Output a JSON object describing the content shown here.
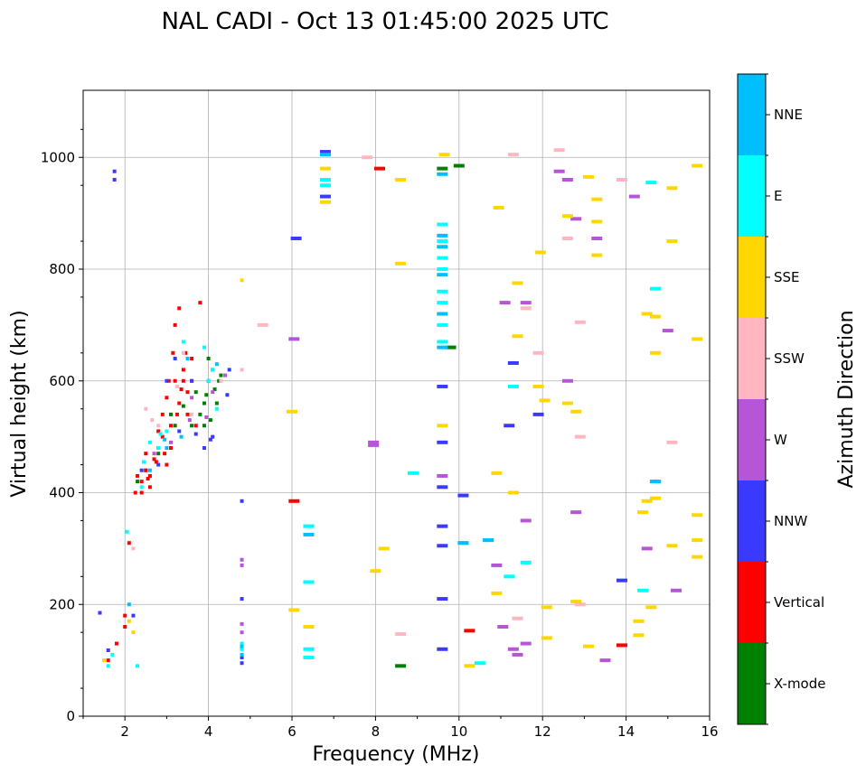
{
  "chart_data": {
    "type": "scatter",
    "title": "NAL CADI - Oct 13 01:45:00 2025 UTC",
    "xlabel": "Frequency (MHz)",
    "ylabel": "Virtual height (km)",
    "xlim": [
      1.0,
      16.0
    ],
    "ylim": [
      0,
      1120
    ],
    "xticks": [
      2,
      4,
      6,
      8,
      10,
      12,
      14,
      16
    ],
    "yticks": [
      0,
      200,
      400,
      600,
      800,
      1000
    ],
    "grid": true,
    "colorbar": {
      "label": "Azimuth Direction",
      "categories": [
        {
          "name": "X-mode",
          "color": "#008000"
        },
        {
          "name": "Vertical",
          "color": "#ff0000"
        },
        {
          "name": "NNW",
          "color": "#3a3aff"
        },
        {
          "name": "W",
          "color": "#b656d6"
        },
        {
          "name": "SSW",
          "color": "#ffb6c1"
        },
        {
          "name": "SSE",
          "color": "#ffd700"
        },
        {
          "name": "E",
          "color": "#00ffff"
        },
        {
          "name": "NNE",
          "color": "#00bfff"
        }
      ]
    },
    "series": [
      {
        "name": "X-mode",
        "points": [
          [
            2.3,
            420
          ],
          [
            2.5,
            440
          ],
          [
            2.8,
            470
          ],
          [
            3.1,
            540
          ],
          [
            3.2,
            520
          ],
          [
            3.6,
            520
          ],
          [
            3.8,
            540
          ],
          [
            3.9,
            560
          ],
          [
            4.0,
            600
          ],
          [
            4.1,
            620
          ],
          [
            4.0,
            640
          ],
          [
            4.3,
            610
          ],
          [
            3.7,
            580
          ],
          [
            4.2,
            560
          ],
          [
            8.6,
            90
          ],
          [
            9.8,
            660
          ],
          [
            10.0,
            985
          ],
          [
            9.6,
            980
          ],
          [
            3.4,
            555
          ],
          [
            3.9,
            520
          ],
          [
            4.15,
            585
          ],
          [
            3.95,
            575
          ],
          [
            4.25,
            600
          ],
          [
            4.05,
            530
          ]
        ]
      },
      {
        "name": "Vertical",
        "points": [
          [
            1.6,
            100
          ],
          [
            1.8,
            130
          ],
          [
            2.0,
            160
          ],
          [
            2.0,
            180
          ],
          [
            2.1,
            310
          ],
          [
            2.25,
            400
          ],
          [
            2.3,
            430
          ],
          [
            2.4,
            420
          ],
          [
            2.5,
            470
          ],
          [
            2.6,
            430
          ],
          [
            2.7,
            460
          ],
          [
            2.8,
            480
          ],
          [
            2.9,
            500
          ],
          [
            3.0,
            450
          ],
          [
            3.0,
            570
          ],
          [
            3.1,
            520
          ],
          [
            3.2,
            600
          ],
          [
            3.3,
            560
          ],
          [
            3.4,
            620
          ],
          [
            3.5,
            580
          ],
          [
            3.6,
            640
          ],
          [
            3.7,
            520
          ],
          [
            3.2,
            700
          ],
          [
            3.3,
            730
          ],
          [
            3.8,
            740
          ],
          [
            3.4,
            600
          ],
          [
            3.6,
            600
          ],
          [
            3.1,
            480
          ],
          [
            2.9,
            540
          ],
          [
            2.6,
            410
          ],
          [
            2.5,
            440
          ],
          [
            2.4,
            400
          ],
          [
            2.8,
            510
          ],
          [
            3.5,
            540
          ],
          [
            6.05,
            385
          ],
          [
            8.1,
            980
          ],
          [
            10.25,
            153
          ],
          [
            13.9,
            127
          ],
          [
            3.15,
            650
          ],
          [
            2.75,
            455
          ],
          [
            3.35,
            585
          ],
          [
            2.55,
            425
          ],
          [
            3.25,
            540
          ],
          [
            2.95,
            470
          ],
          [
            3.45,
            650
          ],
          [
            3.05,
            600
          ]
        ]
      },
      {
        "name": "NNW",
        "points": [
          [
            1.4,
            185
          ],
          [
            1.6,
            118
          ],
          [
            1.75,
            960
          ],
          [
            1.75,
            975
          ],
          [
            2.2,
            180
          ],
          [
            2.4,
            440
          ],
          [
            2.8,
            450
          ],
          [
            3.0,
            600
          ],
          [
            3.2,
            640
          ],
          [
            3.6,
            600
          ],
          [
            3.9,
            480
          ],
          [
            4.1,
            500
          ],
          [
            4.5,
            620
          ],
          [
            4.8,
            95
          ],
          [
            4.8,
            105
          ],
          [
            4.8,
            210
          ],
          [
            4.8,
            385
          ],
          [
            6.1,
            855
          ],
          [
            6.8,
            930
          ],
          [
            6.8,
            1010
          ],
          [
            9.6,
            120
          ],
          [
            9.6,
            210
          ],
          [
            9.6,
            305
          ],
          [
            9.6,
            340
          ],
          [
            9.6,
            410
          ],
          [
            9.6,
            490
          ],
          [
            9.6,
            590
          ],
          [
            10.1,
            395
          ],
          [
            11.2,
            520
          ],
          [
            11.3,
            632
          ],
          [
            11.9,
            540
          ],
          [
            13.9,
            243
          ],
          [
            3.7,
            505
          ],
          [
            4.05,
            495
          ],
          [
            3.3,
            510
          ],
          [
            4.45,
            575
          ]
        ]
      },
      {
        "name": "W",
        "points": [
          [
            2.7,
            470
          ],
          [
            3.1,
            490
          ],
          [
            3.6,
            570
          ],
          [
            4.1,
            580
          ],
          [
            4.4,
            610
          ],
          [
            4.8,
            150
          ],
          [
            4.8,
            165
          ],
          [
            4.8,
            270
          ],
          [
            4.8,
            280
          ],
          [
            6.05,
            675
          ],
          [
            7.95,
            485
          ],
          [
            7.95,
            490
          ],
          [
            9.6,
            430
          ],
          [
            10.9,
            270
          ],
          [
            11.05,
            160
          ],
          [
            11.1,
            740
          ],
          [
            11.3,
            120
          ],
          [
            11.4,
            110
          ],
          [
            11.6,
            130
          ],
          [
            11.6,
            350
          ],
          [
            11.6,
            740
          ],
          [
            12.4,
            975
          ],
          [
            12.6,
            960
          ],
          [
            12.6,
            600
          ],
          [
            12.8,
            365
          ],
          [
            12.8,
            890
          ],
          [
            13.3,
            855
          ],
          [
            13.5,
            100
          ],
          [
            14.5,
            300
          ],
          [
            15.0,
            690
          ],
          [
            14.2,
            930
          ],
          [
            15.2,
            225
          ],
          [
            3.95,
            535
          ],
          [
            3.55,
            530
          ]
        ]
      },
      {
        "name": "SSW",
        "points": [
          [
            2.2,
            300
          ],
          [
            2.5,
            550
          ],
          [
            2.8,
            520
          ],
          [
            3.4,
            650
          ],
          [
            3.6,
            540
          ],
          [
            4.3,
            600
          ],
          [
            4.8,
            620
          ],
          [
            5.3,
            700
          ],
          [
            7.8,
            1000
          ],
          [
            8.6,
            147
          ],
          [
            11.3,
            1005
          ],
          [
            11.4,
            175
          ],
          [
            11.6,
            730
          ],
          [
            11.9,
            650
          ],
          [
            12.4,
            1013
          ],
          [
            12.6,
            855
          ],
          [
            12.9,
            200
          ],
          [
            12.9,
            705
          ],
          [
            12.9,
            500
          ],
          [
            13.9,
            960
          ],
          [
            15.1,
            490
          ],
          [
            3.25,
            590
          ],
          [
            2.65,
            530
          ]
        ]
      },
      {
        "name": "SSE",
        "points": [
          [
            1.5,
            100
          ],
          [
            2.1,
            170
          ],
          [
            2.2,
            150
          ],
          [
            4.8,
            780
          ],
          [
            6.0,
            545
          ],
          [
            6.05,
            190
          ],
          [
            6.4,
            160
          ],
          [
            6.8,
            980
          ],
          [
            6.8,
            920
          ],
          [
            8.0,
            260
          ],
          [
            8.2,
            300
          ],
          [
            8.6,
            960
          ],
          [
            8.6,
            810
          ],
          [
            9.65,
            1005
          ],
          [
            10.25,
            90
          ],
          [
            10.9,
            220
          ],
          [
            10.9,
            435
          ],
          [
            10.95,
            910
          ],
          [
            11.3,
            400
          ],
          [
            11.4,
            680
          ],
          [
            11.4,
            775
          ],
          [
            11.9,
            590
          ],
          [
            11.95,
            830
          ],
          [
            12.05,
            565
          ],
          [
            12.1,
            195
          ],
          [
            12.1,
            140
          ],
          [
            12.6,
            560
          ],
          [
            12.6,
            895
          ],
          [
            12.8,
            205
          ],
          [
            12.8,
            545
          ],
          [
            13.1,
            125
          ],
          [
            13.1,
            965
          ],
          [
            13.3,
            925
          ],
          [
            13.3,
            885
          ],
          [
            13.3,
            825
          ],
          [
            14.3,
            170
          ],
          [
            14.3,
            145
          ],
          [
            14.4,
            365
          ],
          [
            14.5,
            385
          ],
          [
            14.5,
            720
          ],
          [
            14.6,
            195
          ],
          [
            14.7,
            650
          ],
          [
            14.7,
            390
          ],
          [
            14.7,
            715
          ],
          [
            15.1,
            305
          ],
          [
            15.1,
            945
          ],
          [
            15.1,
            850
          ],
          [
            15.7,
            985
          ],
          [
            15.7,
            675
          ],
          [
            15.7,
            360
          ],
          [
            15.7,
            315
          ],
          [
            15.7,
            285
          ],
          [
            9.6,
            520
          ]
        ]
      },
      {
        "name": "E",
        "points": [
          [
            1.6,
            90
          ],
          [
            1.7,
            110
          ],
          [
            2.05,
            330
          ],
          [
            2.3,
            90
          ],
          [
            2.4,
            410
          ],
          [
            2.6,
            490
          ],
          [
            2.8,
            480
          ],
          [
            3.0,
            510
          ],
          [
            3.4,
            670
          ],
          [
            3.9,
            660
          ],
          [
            4.0,
            600
          ],
          [
            4.1,
            620
          ],
          [
            4.2,
            550
          ],
          [
            4.8,
            130
          ],
          [
            4.8,
            120
          ],
          [
            6.4,
            340
          ],
          [
            6.4,
            240
          ],
          [
            6.4,
            105
          ],
          [
            6.4,
            120
          ],
          [
            6.8,
            960
          ],
          [
            6.8,
            950
          ],
          [
            8.9,
            435
          ],
          [
            10.1,
            310
          ],
          [
            10.5,
            95
          ],
          [
            10.7,
            315
          ],
          [
            11.3,
            590
          ],
          [
            11.6,
            275
          ],
          [
            11.2,
            250
          ],
          [
            14.7,
            765
          ],
          [
            14.7,
            420
          ],
          [
            14.6,
            955
          ],
          [
            14.4,
            225
          ],
          [
            9.6,
            700
          ],
          [
            9.6,
            740
          ],
          [
            9.6,
            800
          ],
          [
            9.6,
            850
          ],
          [
            9.6,
            760
          ],
          [
            9.6,
            880
          ],
          [
            9.6,
            670
          ],
          [
            9.6,
            820
          ],
          [
            2.45,
            455
          ],
          [
            2.85,
            505
          ]
        ]
      },
      {
        "name": "NNE",
        "points": [
          [
            2.1,
            200
          ],
          [
            2.6,
            440
          ],
          [
            3.0,
            480
          ],
          [
            3.5,
            640
          ],
          [
            4.2,
            630
          ],
          [
            4.8,
            110
          ],
          [
            4.8,
            125
          ],
          [
            6.4,
            325
          ],
          [
            6.8,
            1005
          ],
          [
            9.6,
            660
          ],
          [
            9.6,
            720
          ],
          [
            9.6,
            790
          ],
          [
            9.6,
            840
          ],
          [
            9.6,
            860
          ],
          [
            9.6,
            970
          ],
          [
            10.1,
            310
          ],
          [
            10.7,
            315
          ],
          [
            14.7,
            420
          ],
          [
            2.95,
            495
          ],
          [
            3.35,
            500
          ]
        ]
      }
    ]
  }
}
